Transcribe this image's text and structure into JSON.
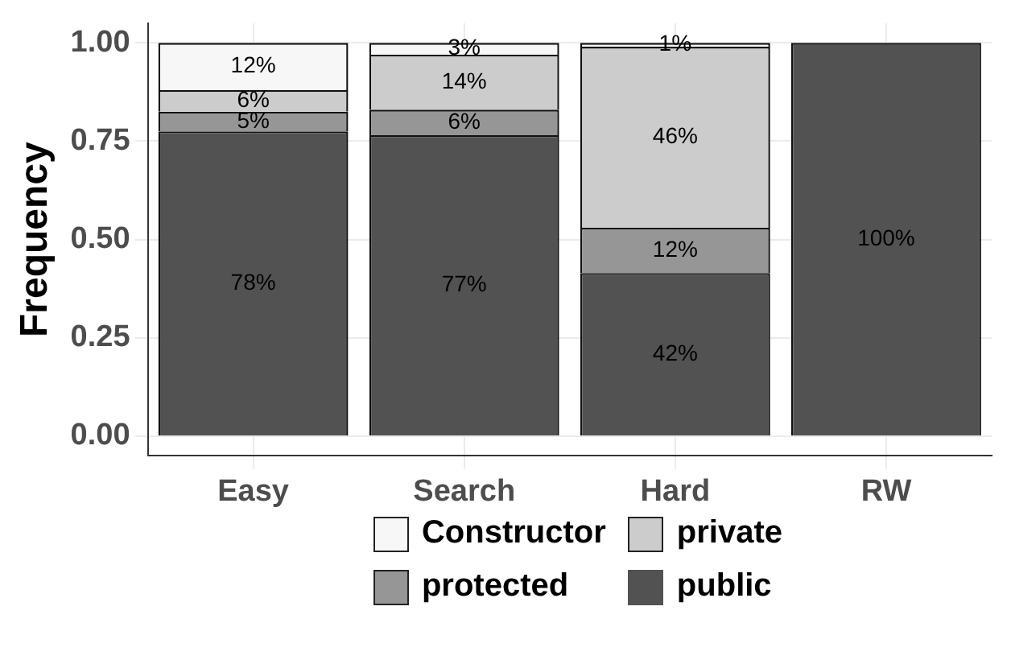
{
  "chart_data": {
    "type": "bar",
    "stacked": true,
    "ylabel": "Frequency",
    "categories": [
      "Easy",
      "Search",
      "Hard",
      "RW"
    ],
    "series": [
      {
        "name": "public",
        "color": "#525252",
        "values": [
          0.775,
          0.765,
          0.415,
          1.0
        ],
        "value_labels": [
          "78%",
          "77%",
          "42%",
          "100%"
        ]
      },
      {
        "name": "protected",
        "color": "#969696",
        "values": [
          0.05,
          0.065,
          0.115,
          0
        ],
        "value_labels": [
          "5%",
          "6%",
          "12%",
          null
        ]
      },
      {
        "name": "private",
        "color": "#cccccc",
        "values": [
          0.055,
          0.14,
          0.46,
          0
        ],
        "value_labels": [
          "6%",
          "14%",
          "46%",
          null
        ]
      },
      {
        "name": "Constructor",
        "color": "#f7f7f7",
        "values": [
          0.12,
          0.03,
          0.01,
          0
        ],
        "value_labels": [
          "12%",
          "3%",
          "1%",
          null
        ]
      }
    ],
    "ylim": [
      -0.05,
      1.05
    ],
    "yticks": [
      {
        "value": 0,
        "label": "0.00"
      },
      {
        "value": 0.25,
        "label": "0.25"
      },
      {
        "value": 0.5,
        "label": "0.50"
      },
      {
        "value": 0.75,
        "label": "0.75"
      },
      {
        "value": 1,
        "label": "1.00"
      }
    ],
    "grid": true,
    "legend": "bottom"
  }
}
